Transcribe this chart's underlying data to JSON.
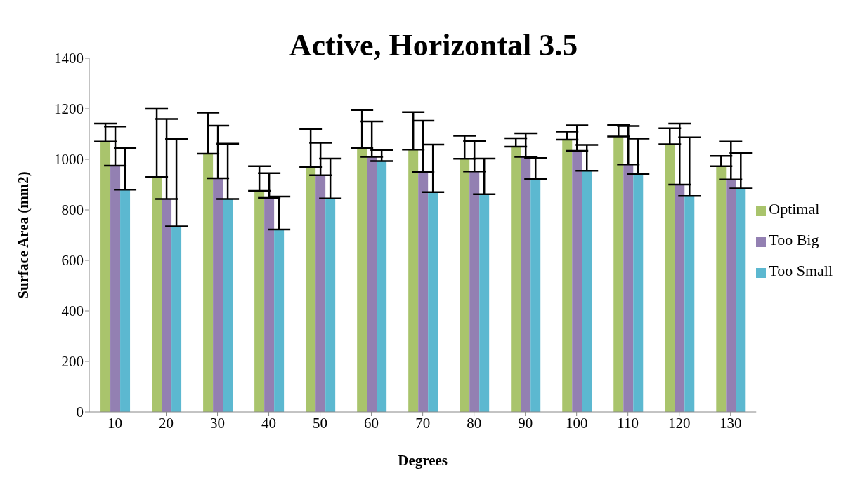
{
  "chart_data": {
    "type": "bar",
    "title": "Active, Horizontal 3.5",
    "xlabel": "Degrees",
    "ylabel": "Surface Area (mm2)",
    "categories": [
      "10",
      "20",
      "30",
      "40",
      "50",
      "60",
      "70",
      "80",
      "90",
      "100",
      "110",
      "120",
      "130"
    ],
    "series": [
      {
        "name": "Optimal",
        "color": "#a9c46c",
        "values": [
          1070,
          930,
          1022,
          875,
          970,
          1045,
          1038,
          1002,
          1050,
          1078,
          1090,
          1060,
          973
        ],
        "errors": [
          [
            1070,
            1142
          ],
          [
            930,
            1200
          ],
          [
            1022,
            1185
          ],
          [
            875,
            973
          ],
          [
            970,
            1120
          ],
          [
            1045,
            1195
          ],
          [
            1038,
            1187
          ],
          [
            1002,
            1093
          ],
          [
            1050,
            1083
          ],
          [
            1078,
            1110
          ],
          [
            1090,
            1137
          ],
          [
            1060,
            1123
          ],
          [
            973,
            1013
          ]
        ]
      },
      {
        "name": "Too Big",
        "color": "#9380b2",
        "values": [
          975,
          843,
          925,
          847,
          937,
          1010,
          950,
          952,
          1010,
          1033,
          980,
          900,
          920
        ],
        "errors": [
          [
            975,
            1130
          ],
          [
            843,
            1160
          ],
          [
            925,
            1133
          ],
          [
            847,
            945
          ],
          [
            937,
            1065
          ],
          [
            1010,
            1150
          ],
          [
            950,
            1153
          ],
          [
            952,
            1072
          ],
          [
            1010,
            1103
          ],
          [
            1033,
            1135
          ],
          [
            980,
            1132
          ],
          [
            900,
            1142
          ],
          [
            920,
            1070
          ]
        ]
      },
      {
        "name": "Too Small",
        "color": "#5cb8d0",
        "values": [
          880,
          735,
          843,
          722,
          845,
          993,
          870,
          862,
          922,
          955,
          942,
          855,
          885
        ],
        "errors": [
          [
            880,
            1045
          ],
          [
            735,
            1080
          ],
          [
            843,
            1062
          ],
          [
            722,
            853
          ],
          [
            845,
            1003
          ],
          [
            993,
            1037
          ],
          [
            870,
            1058
          ],
          [
            862,
            1003
          ],
          [
            922,
            1005
          ],
          [
            955,
            1057
          ],
          [
            942,
            1082
          ],
          [
            855,
            1087
          ],
          [
            885,
            1025
          ]
        ]
      }
    ],
    "ylim": [
      0,
      1400
    ],
    "yticks": [
      0,
      200,
      400,
      600,
      800,
      1000,
      1200,
      1400
    ],
    "grid": false,
    "legend": "right"
  }
}
